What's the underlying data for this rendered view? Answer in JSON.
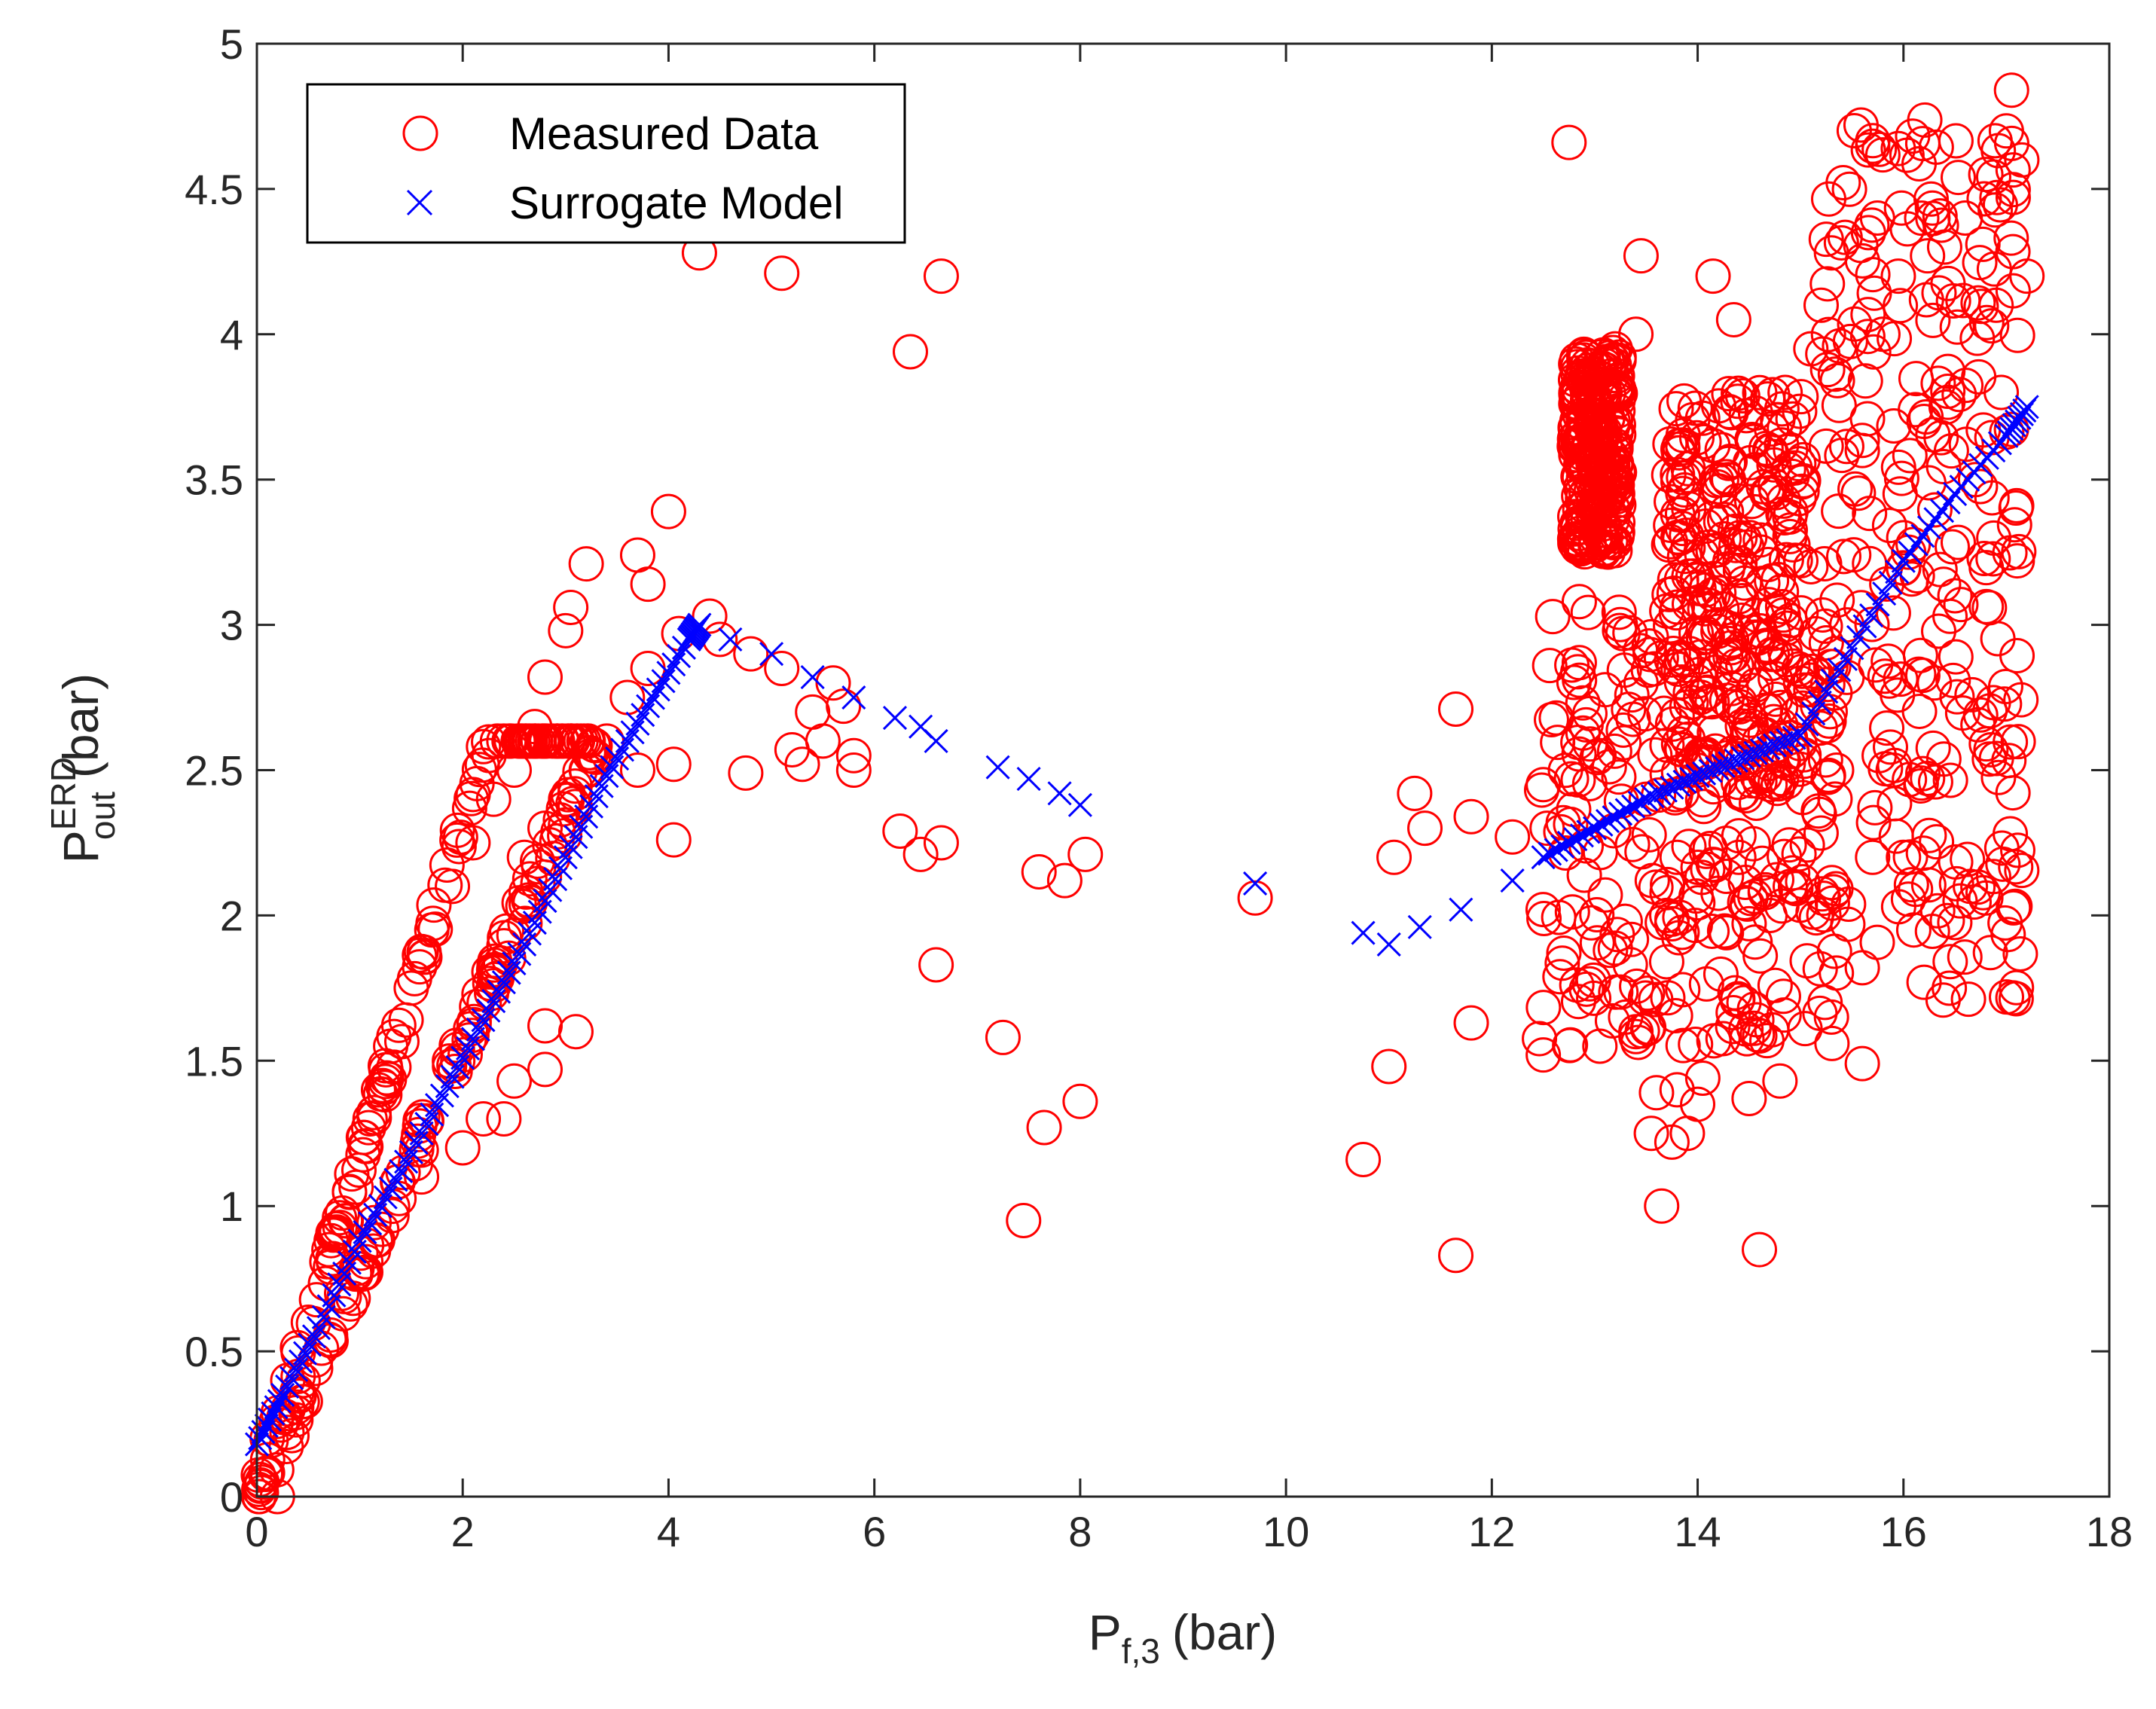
{
  "chart_data": {
    "type": "scatter",
    "xlabel": {
      "base": "P",
      "sub": "f,3",
      "unit": "(bar)"
    },
    "ylabel": {
      "base": "P",
      "sup": "ERD",
      "sub": "out",
      "unit": "(bar)"
    },
    "xlim": [
      0,
      18
    ],
    "ylim": [
      0,
      5
    ],
    "xticks": [
      0,
      2,
      4,
      6,
      8,
      10,
      12,
      14,
      16,
      18
    ],
    "yticks": [
      0,
      0.5,
      1,
      1.5,
      2,
      2.5,
      3,
      3.5,
      4,
      4.5,
      5
    ],
    "legend_position": "top-left",
    "grid": false,
    "series": [
      {
        "name": "Measured Data",
        "marker": "circle",
        "color": "#ff0000",
        "points": [
          [
            0.2,
            0.0
          ],
          [
            0.05,
            0.05
          ],
          [
            0.1,
            0.2
          ],
          [
            0.3,
            0.4
          ],
          [
            0.5,
            0.6
          ],
          [
            0.7,
            0.85
          ],
          [
            0.9,
            1.05
          ],
          [
            1.1,
            1.3
          ],
          [
            1.3,
            1.55
          ],
          [
            1.5,
            1.75
          ],
          [
            1.7,
            1.95
          ],
          [
            1.9,
            2.1
          ],
          [
            2.1,
            2.25
          ],
          [
            2.3,
            2.4
          ],
          [
            2.5,
            2.5
          ],
          [
            1.6,
            1.1
          ],
          [
            2.0,
            1.2
          ],
          [
            2.2,
            1.3
          ],
          [
            2.4,
            1.3
          ],
          [
            2.5,
            1.43
          ],
          [
            2.8,
            1.47
          ],
          [
            2.8,
            1.62
          ],
          [
            3.1,
            1.6
          ],
          [
            2.6,
            2.2
          ],
          [
            2.8,
            2.3
          ],
          [
            3.0,
            2.4
          ],
          [
            3.2,
            2.5
          ],
          [
            3.4,
            2.6
          ],
          [
            3.6,
            2.75
          ],
          [
            3.8,
            2.85
          ],
          [
            2.7,
            2.65
          ],
          [
            2.8,
            2.82
          ],
          [
            3.0,
            2.98
          ],
          [
            3.05,
            3.06
          ],
          [
            3.2,
            3.21
          ],
          [
            3.7,
            3.24
          ],
          [
            3.8,
            3.14
          ],
          [
            4.0,
            3.39
          ],
          [
            4.1,
            2.97
          ],
          [
            4.05,
            2.52
          ],
          [
            4.05,
            2.26
          ],
          [
            3.7,
            2.5
          ],
          [
            4.4,
            3.03
          ],
          [
            4.5,
            2.95
          ],
          [
            4.8,
            2.9
          ],
          [
            5.1,
            2.85
          ],
          [
            5.2,
            2.57
          ],
          [
            5.3,
            2.52
          ],
          [
            5.4,
            2.7
          ],
          [
            5.5,
            2.6
          ],
          [
            5.6,
            2.8
          ],
          [
            5.7,
            2.72
          ],
          [
            5.8,
            2.55
          ],
          [
            5.8,
            2.5
          ],
          [
            4.75,
            2.49
          ],
          [
            4.3,
            4.28
          ],
          [
            5.1,
            4.21
          ],
          [
            6.35,
            3.94
          ],
          [
            6.65,
            4.2
          ],
          [
            6.25,
            2.29
          ],
          [
            6.45,
            2.21
          ],
          [
            6.65,
            2.25
          ],
          [
            6.6,
            1.83
          ],
          [
            7.25,
            1.58
          ],
          [
            7.45,
            0.95
          ],
          [
            7.65,
            1.27
          ],
          [
            7.6,
            2.15
          ],
          [
            7.85,
            2.12
          ],
          [
            8.0,
            1.36
          ],
          [
            8.05,
            2.21
          ],
          [
            9.7,
            2.06
          ],
          [
            10.75,
            1.16
          ],
          [
            11.0,
            1.48
          ],
          [
            11.05,
            2.2
          ],
          [
            11.25,
            2.42
          ],
          [
            11.35,
            2.3
          ],
          [
            11.65,
            0.83
          ],
          [
            11.65,
            2.71
          ],
          [
            11.8,
            1.63
          ],
          [
            11.8,
            2.34
          ],
          [
            12.2,
            2.27
          ],
          [
            12.5,
            1.52
          ],
          [
            12.5,
            2.45
          ],
          [
            12.75,
            4.66
          ],
          [
            12.7,
            1.87
          ],
          [
            12.85,
            2.87
          ],
          [
            12.85,
            3.08
          ],
          [
            12.9,
            3.3
          ],
          [
            13.0,
            3.6
          ],
          [
            13.1,
            3.8
          ],
          [
            13.2,
            3.95
          ],
          [
            13.2,
            3.5
          ],
          [
            13.0,
            3.4
          ],
          [
            13.05,
            1.55
          ],
          [
            13.3,
            1.65
          ],
          [
            13.4,
            1.6
          ],
          [
            13.45,
            4.27
          ],
          [
            13.4,
            4.0
          ],
          [
            13.45,
            2.8
          ],
          [
            13.5,
            2.4
          ],
          [
            13.55,
            1.25
          ],
          [
            13.6,
            1.39
          ],
          [
            13.65,
            1.0
          ],
          [
            13.75,
            1.22
          ],
          [
            13.8,
            1.4
          ],
          [
            13.9,
            1.25
          ],
          [
            14.0,
            1.35
          ],
          [
            14.05,
            1.44
          ],
          [
            13.7,
            2.0
          ],
          [
            13.8,
            2.2
          ],
          [
            14.0,
            2.5
          ],
          [
            14.15,
            4.2
          ],
          [
            14.2,
            3.0
          ],
          [
            14.3,
            3.5
          ],
          [
            14.4,
            2.2
          ],
          [
            14.45,
            1.7
          ],
          [
            14.35,
            4.05
          ],
          [
            14.6,
            0.85
          ],
          [
            14.5,
            1.37
          ],
          [
            14.6,
            2.6
          ],
          [
            14.7,
            3.6
          ],
          [
            14.8,
            1.43
          ],
          [
            14.85,
            3.8
          ],
          [
            14.9,
            2.1
          ],
          [
            15.0,
            2.8
          ],
          [
            15.1,
            3.2
          ],
          [
            15.1,
            3.95
          ],
          [
            15.2,
            4.1
          ],
          [
            15.3,
            4.28
          ],
          [
            15.3,
            1.65
          ],
          [
            15.35,
            2.5
          ],
          [
            15.45,
            3.0
          ],
          [
            15.6,
            1.82
          ],
          [
            15.6,
            1.49
          ],
          [
            15.6,
            3.6
          ],
          [
            15.7,
            2.2
          ],
          [
            15.8,
            4.0
          ],
          [
            15.9,
            2.5
          ],
          [
            15.95,
            4.2
          ],
          [
            16.0,
            2.2
          ],
          [
            16.1,
            1.95
          ],
          [
            16.2,
            1.77
          ],
          [
            16.2,
            3.7
          ],
          [
            16.3,
            2.8
          ],
          [
            16.4,
            4.3
          ],
          [
            16.5,
            3.1
          ],
          [
            16.55,
            2.05
          ],
          [
            16.6,
            4.4
          ],
          [
            16.65,
            2.1
          ],
          [
            16.7,
            3.5
          ],
          [
            16.75,
            2.69
          ],
          [
            16.8,
            2.06
          ],
          [
            16.8,
            4.55
          ],
          [
            16.85,
            2.57
          ],
          [
            16.9,
            4.1
          ],
          [
            16.95,
            3.8
          ],
          [
            17.0,
            4.7
          ],
          [
            17.05,
            4.84
          ],
          [
            17.1,
            3.41
          ],
          [
            17.15,
            4.6
          ],
          [
            17.2,
            4.2
          ]
        ],
        "clusters": [
          {
            "x": [
              0.0,
              3.3
            ],
            "y": [
              0.0,
              2.6
            ]
          },
          {
            "x": [
              12.8,
              13.25
            ],
            "y": [
              3.25,
              3.95
            ]
          },
          {
            "x": [
              12.45,
              15.35
            ],
            "y": [
              1.55,
              3.05
            ]
          },
          {
            "x": [
              13.7,
              15.05
            ],
            "y": [
              2.4,
              3.8
            ]
          },
          {
            "x": [
              15.2,
              17.15
            ],
            "y": [
              1.7,
              4.75
            ]
          }
        ]
      },
      {
        "name": "Surrogate Model",
        "marker": "x",
        "color": "#0000ff",
        "points": [
          [
            0.0,
            0.18
          ],
          [
            0.25,
            0.35
          ],
          [
            0.6,
            0.58
          ],
          [
            1.0,
            0.88
          ],
          [
            1.4,
            1.12
          ],
          [
            1.8,
            1.38
          ],
          [
            2.2,
            1.64
          ],
          [
            2.6,
            1.9
          ],
          [
            3.0,
            2.2
          ],
          [
            3.4,
            2.48
          ],
          [
            3.8,
            2.72
          ],
          [
            4.2,
            2.95
          ],
          [
            4.3,
            3.0
          ],
          [
            4.6,
            2.95
          ],
          [
            5.0,
            2.9
          ],
          [
            5.4,
            2.82
          ],
          [
            5.8,
            2.75
          ],
          [
            6.2,
            2.68
          ],
          [
            6.45,
            2.65
          ],
          [
            6.6,
            2.6
          ],
          [
            7.2,
            2.51
          ],
          [
            7.5,
            2.47
          ],
          [
            7.8,
            2.42
          ],
          [
            8.0,
            2.38
          ],
          [
            9.7,
            2.11
          ],
          [
            10.75,
            1.94
          ],
          [
            11.0,
            1.9
          ],
          [
            11.3,
            1.96
          ],
          [
            11.7,
            2.02
          ],
          [
            12.2,
            2.12
          ],
          [
            12.5,
            2.2
          ],
          [
            13.0,
            2.3
          ],
          [
            13.5,
            2.4
          ],
          [
            14.0,
            2.48
          ],
          [
            14.5,
            2.55
          ],
          [
            15.0,
            2.62
          ],
          [
            15.5,
            2.92
          ],
          [
            16.0,
            3.22
          ],
          [
            16.5,
            3.45
          ],
          [
            17.0,
            3.65
          ],
          [
            17.2,
            3.75
          ]
        ]
      }
    ]
  }
}
